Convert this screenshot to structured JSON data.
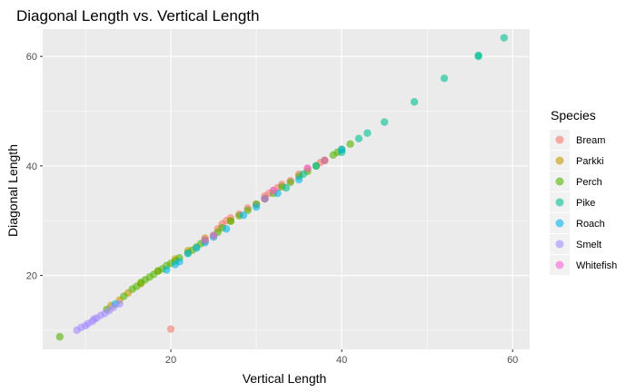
{
  "chart_data": {
    "type": "scatter",
    "title": "Diagonal Length vs. Vertical Length",
    "xlabel": "Vertical Length",
    "ylabel": "Diagonal Length",
    "xlim": [
      5,
      62
    ],
    "ylim": [
      6.5,
      65
    ],
    "x_ticks": [
      20,
      40,
      60
    ],
    "y_ticks": [
      20,
      40,
      60
    ],
    "grid": true,
    "legend_title": "Species",
    "legend_position": "right",
    "series": [
      {
        "name": "Bream",
        "color": "#F8766D",
        "points": [
          [
            20,
            10.2
          ],
          [
            24,
            26.3
          ],
          [
            25.5,
            28.5
          ],
          [
            26,
            29.4
          ],
          [
            26.5,
            30
          ],
          [
            27,
            30.5
          ],
          [
            28,
            31.2
          ],
          [
            29,
            32.3
          ],
          [
            30,
            33
          ],
          [
            31,
            34.5
          ],
          [
            31.5,
            35
          ],
          [
            32,
            35.5
          ],
          [
            32.5,
            36
          ],
          [
            33,
            36.6
          ],
          [
            34,
            37.3
          ],
          [
            35,
            38.5
          ],
          [
            36,
            39.5
          ],
          [
            37.5,
            40.6
          ],
          [
            38,
            41
          ]
        ]
      },
      {
        "name": "Parkki",
        "color": "#C49A00",
        "points": [
          [
            13,
            14.5
          ],
          [
            14,
            15.5
          ],
          [
            15,
            16.8
          ],
          [
            16.5,
            18.5
          ],
          [
            18.5,
            20.8
          ],
          [
            20.5,
            23
          ],
          [
            22,
            24.5
          ],
          [
            24,
            26.8
          ],
          [
            27,
            30
          ]
        ]
      },
      {
        "name": "Perch",
        "color": "#53B400",
        "points": [
          [
            7,
            8.8
          ],
          [
            12.5,
            13.8
          ],
          [
            14.5,
            16.2
          ],
          [
            15.5,
            17.5
          ],
          [
            16,
            18
          ],
          [
            16.5,
            18.7
          ],
          [
            17,
            19.2
          ],
          [
            17.5,
            19.7
          ],
          [
            18,
            20.2
          ],
          [
            18.5,
            20.8
          ],
          [
            19,
            21.2
          ],
          [
            19.5,
            21.8
          ],
          [
            20,
            22.2
          ],
          [
            20.5,
            22.6
          ],
          [
            21,
            23.2
          ],
          [
            22,
            24.1
          ],
          [
            22.5,
            24.6
          ],
          [
            23,
            25.2
          ],
          [
            23.5,
            25.8
          ],
          [
            24,
            26.4
          ],
          [
            25,
            27.3
          ],
          [
            25.5,
            27.9
          ],
          [
            26,
            28.7
          ],
          [
            27,
            29.9
          ],
          [
            28,
            30.9
          ],
          [
            29,
            31.9
          ],
          [
            30,
            33
          ],
          [
            31,
            34
          ],
          [
            32,
            35
          ],
          [
            33,
            36.2
          ],
          [
            34,
            37
          ],
          [
            35,
            38.1
          ],
          [
            36,
            39
          ],
          [
            37,
            40
          ],
          [
            38,
            41
          ],
          [
            39,
            42
          ],
          [
            39.5,
            42.5
          ],
          [
            40,
            43
          ],
          [
            41,
            44
          ]
        ]
      },
      {
        "name": "Pike",
        "color": "#00C094",
        "points": [
          [
            31,
            34
          ],
          [
            33.5,
            36
          ],
          [
            35.5,
            38.5
          ],
          [
            37,
            40
          ],
          [
            40,
            42.5
          ],
          [
            42,
            45
          ],
          [
            43,
            46
          ],
          [
            45,
            48
          ],
          [
            48.5,
            51.7
          ],
          [
            52,
            56
          ],
          [
            56,
            60
          ],
          [
            56,
            60.2
          ],
          [
            59,
            63.4
          ]
        ]
      },
      {
        "name": "Roach",
        "color": "#00B6EB",
        "points": [
          [
            13.5,
            14.8
          ],
          [
            19.5,
            21
          ],
          [
            20.5,
            22
          ],
          [
            21,
            22.5
          ],
          [
            22,
            24
          ],
          [
            23,
            25
          ],
          [
            24,
            26
          ],
          [
            25,
            27
          ],
          [
            26.5,
            28.5
          ],
          [
            28.5,
            31
          ],
          [
            30,
            32.5
          ],
          [
            32.5,
            35
          ],
          [
            35,
            37.5
          ],
          [
            40,
            43
          ]
        ]
      },
      {
        "name": "Smelt",
        "color": "#A58AFF",
        "points": [
          [
            9,
            10
          ],
          [
            9.5,
            10.5
          ],
          [
            10,
            10.8
          ],
          [
            10.3,
            11.2
          ],
          [
            10.8,
            11.6
          ],
          [
            11,
            12
          ],
          [
            11.3,
            12.2
          ],
          [
            11.8,
            12.7
          ],
          [
            12.3,
            13.1
          ],
          [
            12.8,
            13.6
          ],
          [
            13.3,
            14.2
          ],
          [
            14,
            14.8
          ]
        ]
      },
      {
        "name": "Whitefish",
        "color": "#FB61D7",
        "points": [
          [
            24,
            26.5
          ],
          [
            25,
            27.3
          ],
          [
            31,
            34
          ],
          [
            32,
            35.5
          ],
          [
            36,
            39.6
          ],
          [
            38,
            41
          ]
        ]
      }
    ]
  }
}
